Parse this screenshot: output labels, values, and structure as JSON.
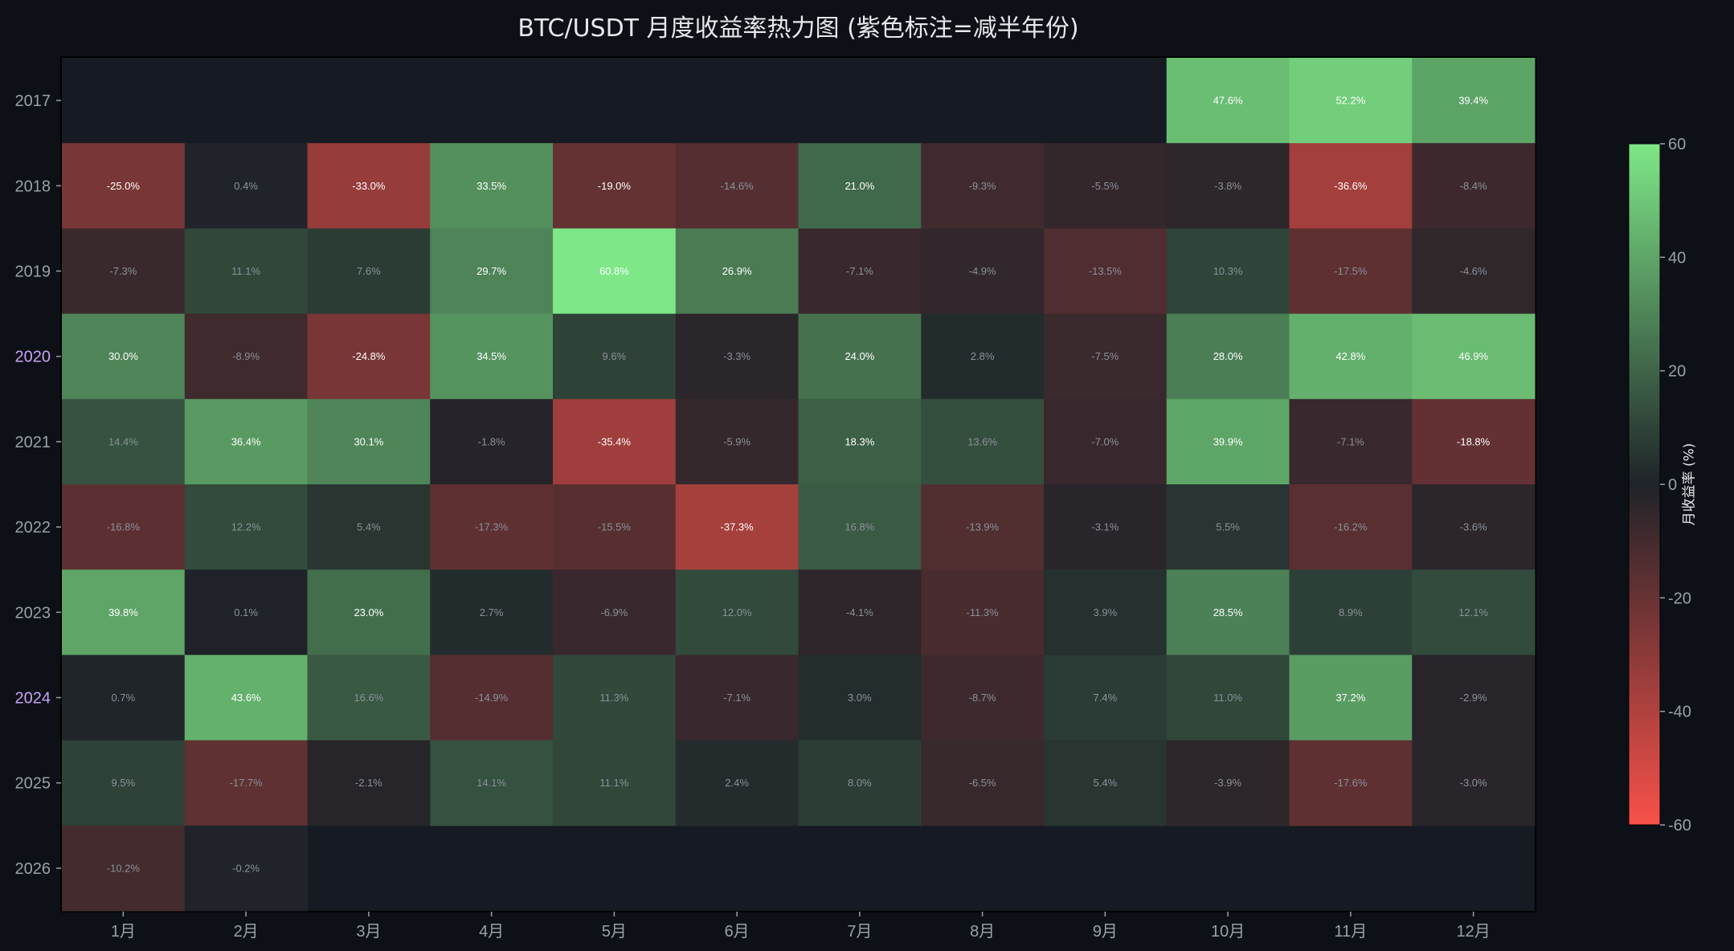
{
  "chart_data": {
    "type": "heatmap",
    "title": "BTC/USDT 月度收益率热力图 (紫色标注=减半年份)",
    "x_categories": [
      "1月",
      "2月",
      "3月",
      "4月",
      "5月",
      "6月",
      "7月",
      "8月",
      "9月",
      "10月",
      "11月",
      "12月"
    ],
    "y_categories": [
      "2017",
      "2018",
      "2019",
      "2020",
      "2021",
      "2022",
      "2023",
      "2024",
      "2025",
      "2026"
    ],
    "highlighted_years": [
      "2020",
      "2024"
    ],
    "values": [
      [
        null,
        null,
        null,
        null,
        null,
        null,
        null,
        null,
        null,
        47.6,
        52.2,
        39.4
      ],
      [
        -25.0,
        0.4,
        -33.0,
        33.5,
        -19.0,
        -14.6,
        21.0,
        -9.3,
        -5.5,
        -3.8,
        -36.6,
        -8.4
      ],
      [
        -7.3,
        11.1,
        7.6,
        29.7,
        60.8,
        26.9,
        -7.1,
        -4.9,
        -13.5,
        10.3,
        -17.5,
        -4.6
      ],
      [
        30.0,
        -8.9,
        -24.8,
        34.5,
        9.6,
        -3.3,
        24.0,
        2.8,
        -7.5,
        28.0,
        42.8,
        46.9
      ],
      [
        14.4,
        36.4,
        30.1,
        -1.8,
        -35.4,
        -5.9,
        18.3,
        13.6,
        -7.0,
        39.9,
        -7.1,
        -18.8
      ],
      [
        -16.8,
        12.2,
        5.4,
        -17.3,
        -15.5,
        -37.3,
        16.8,
        -13.9,
        -3.1,
        5.5,
        -16.2,
        -3.6
      ],
      [
        39.8,
        0.1,
        23.0,
        2.7,
        -6.9,
        12.0,
        -4.1,
        -11.3,
        3.9,
        28.5,
        8.9,
        12.1
      ],
      [
        0.7,
        43.6,
        16.6,
        -14.9,
        11.3,
        -7.1,
        3.0,
        -8.7,
        7.4,
        11.0,
        37.2,
        -2.9
      ],
      [
        9.5,
        -17.7,
        -2.1,
        14.1,
        11.1,
        2.4,
        8.0,
        -6.5,
        5.4,
        -3.9,
        -17.6,
        -3.0
      ],
      [
        -10.2,
        -0.2,
        null,
        null,
        null,
        null,
        null,
        null,
        null,
        null,
        null,
        null
      ]
    ],
    "value_format": "{v}%",
    "colorbar": {
      "label": "月收益率 (%)",
      "range": [
        -60,
        60
      ],
      "ticks": [
        60,
        40,
        20,
        0,
        -20,
        -40,
        -60
      ]
    },
    "colors": {
      "negative": "#f85149",
      "zero": "#1f2329",
      "positive": "#7ee787",
      "empty": "#161a22",
      "highlight_year": "#c9a3f5",
      "background": "#0d1017"
    }
  }
}
